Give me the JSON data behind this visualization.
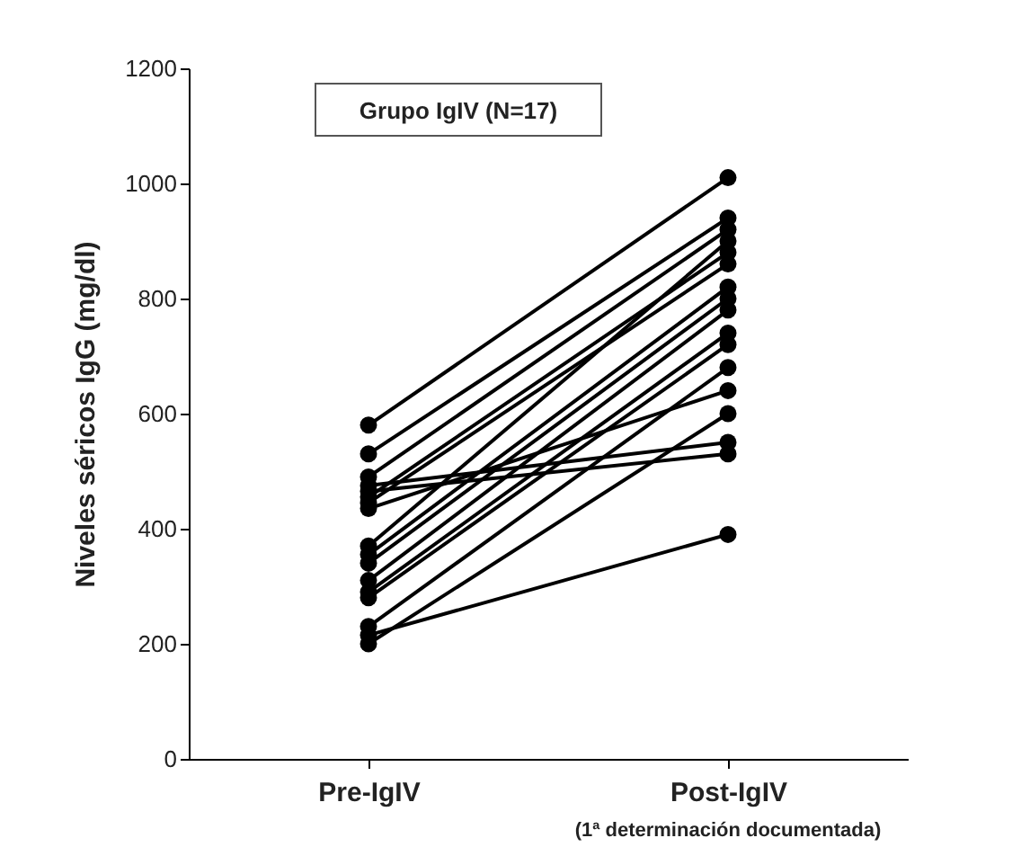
{
  "chart_data": {
    "type": "line",
    "ylabel": "Niveles séricos IgG (mg/dl)",
    "categories": [
      "Pre-IgIV",
      "Post-IgIV"
    ],
    "series": [
      {
        "color": "#000000",
        "values": [
          580,
          1010
        ]
      },
      {
        "color": "#000000",
        "values": [
          530,
          940
        ]
      },
      {
        "color": "#000000",
        "values": [
          490,
          920
        ]
      },
      {
        "color": "#000000",
        "values": [
          475,
          550
        ]
      },
      {
        "color": "#000000",
        "values": [
          465,
          530
        ]
      },
      {
        "color": "#000000",
        "values": [
          455,
          880
        ]
      },
      {
        "color": "#000000",
        "values": [
          445,
          860
        ]
      },
      {
        "color": "#000000",
        "values": [
          435,
          640
        ]
      },
      {
        "color": "#000000",
        "values": [
          370,
          900
        ]
      },
      {
        "color": "#000000",
        "values": [
          355,
          820
        ]
      },
      {
        "color": "#000000",
        "values": [
          340,
          800
        ]
      },
      {
        "color": "#000000",
        "values": [
          310,
          780
        ]
      },
      {
        "color": "#000000",
        "values": [
          290,
          740
        ]
      },
      {
        "color": "#000000",
        "values": [
          280,
          720
        ]
      },
      {
        "color": "#000000",
        "values": [
          230,
          680
        ]
      },
      {
        "color": "#000000",
        "values": [
          215,
          390
        ]
      },
      {
        "color": "#000000",
        "values": [
          200,
          600
        ]
      }
    ],
    "ylim": [
      0,
      1200
    ],
    "yticks": [
      0,
      200,
      400,
      600,
      800,
      1000,
      1200
    ],
    "grid": false,
    "marker": "circle",
    "line_style": "solid",
    "annotations": [
      "Grupo IgIV (N=17)",
      "(1ª determinación documentada)"
    ]
  }
}
